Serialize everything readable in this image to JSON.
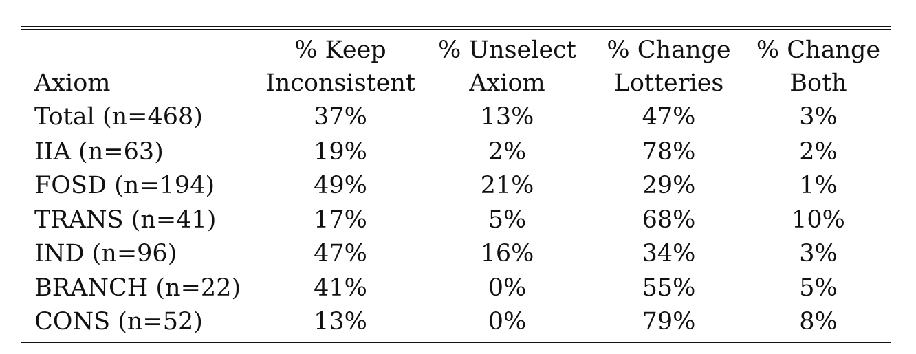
{
  "table": {
    "headers": {
      "axiom": "Axiom",
      "keep_line1": "% Keep",
      "keep_line2": "Inconsistent",
      "unselect_line1": "% Unselect",
      "unselect_line2": "Axiom",
      "lotteries_line1": "% Change",
      "lotteries_line2": "Lotteries",
      "both_line1": "% Change",
      "both_line2": "Both"
    },
    "total_row": {
      "axiom": "Total (n=468)",
      "keep": "37%",
      "unselect": "13%",
      "lotteries": "47%",
      "both": "3%"
    },
    "rows": [
      {
        "axiom": "IIA (n=63)",
        "keep": "19%",
        "unselect": "2%",
        "lotteries": "78%",
        "both": "2%"
      },
      {
        "axiom": "FOSD (n=194)",
        "keep": "49%",
        "unselect": "21%",
        "lotteries": "29%",
        "both": "1%"
      },
      {
        "axiom": "TRANS (n=41)",
        "keep": "17%",
        "unselect": "5%",
        "lotteries": "68%",
        "both": "10%"
      },
      {
        "axiom": "IND (n=96)",
        "keep": "47%",
        "unselect": "16%",
        "lotteries": "34%",
        "both": "3%"
      },
      {
        "axiom": "BRANCH (n=22)",
        "keep": "41%",
        "unselect": "0%",
        "lotteries": "55%",
        "both": "5%"
      },
      {
        "axiom": "CONS (n=52)",
        "keep": "13%",
        "unselect": "0%",
        "lotteries": "79%",
        "both": "8%"
      }
    ]
  }
}
